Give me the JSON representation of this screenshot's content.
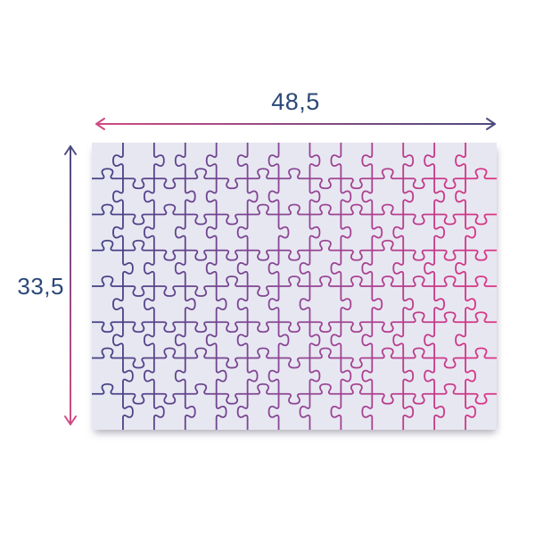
{
  "figure": {
    "type": "jigsaw-puzzle-size-diagram"
  },
  "puzzle": {
    "rows": 8,
    "cols": 13,
    "piece_count": 104,
    "board_fill": "#e7e7f2",
    "stroke_width": 1.8,
    "gradient": [
      "#414184",
      "#8f4795",
      "#de3383"
    ],
    "seed": 13
  },
  "dimensions": {
    "width_label": "48,5",
    "height_label": "33,5",
    "label_color": "#2b4878",
    "arrow_pink": "#d14b85",
    "arrow_navy": "#4b4b7e"
  }
}
